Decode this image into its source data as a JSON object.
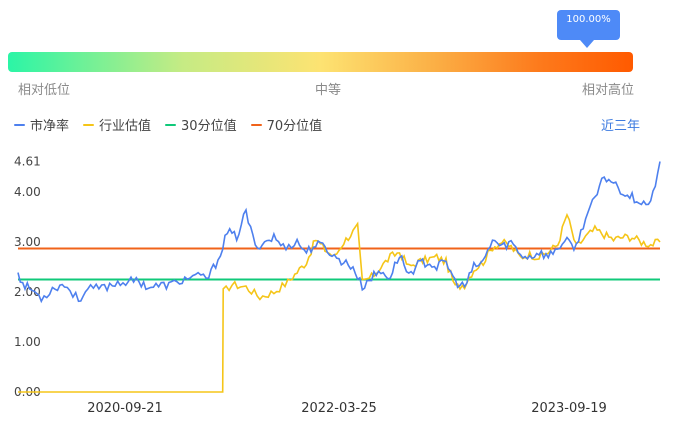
{
  "gauge": {
    "value_label": "100.00%",
    "low_label": "相对低位",
    "mid_label": "中等",
    "high_label": "相对高位"
  },
  "period_label": "近三年",
  "colors": {
    "pb": "#4e80ee",
    "industry": "#f5c518",
    "p30": "#10c97a",
    "p70": "#f0631a"
  },
  "chart_data": {
    "type": "line",
    "legend_position": "top-left",
    "grid": false,
    "ylim": [
      0,
      4.61
    ],
    "yticks": [
      "0.00",
      "1.00",
      "2.00",
      "3.00",
      "4.00",
      "4.61"
    ],
    "xticks": [
      "2020-09-21",
      "2022-03-25",
      "2023-09-19"
    ],
    "series": [
      {
        "name": "市净率",
        "anchors": [
          [
            0,
            2.42
          ],
          [
            0.01,
            2.15
          ],
          [
            0.03,
            2.05
          ],
          [
            0.05,
            1.88
          ],
          [
            0.08,
            2.1
          ],
          [
            0.1,
            2.15
          ],
          [
            0.13,
            1.85
          ],
          [
            0.15,
            2.05
          ],
          [
            0.18,
            2.08
          ],
          [
            0.22,
            2.2
          ],
          [
            0.26,
            2.22
          ],
          [
            0.28,
            2.1
          ],
          [
            0.33,
            2.15
          ],
          [
            0.37,
            2.3
          ],
          [
            0.41,
            2.3
          ],
          [
            0.43,
            2.65
          ],
          [
            0.45,
            3.2
          ],
          [
            0.47,
            3.1
          ],
          [
            0.49,
            3.6
          ],
          [
            0.51,
            2.9
          ],
          [
            0.53,
            3.0
          ],
          [
            0.55,
            3.1
          ],
          [
            0.57,
            2.9
          ],
          [
            0.6,
            3.0
          ],
          [
            0.62,
            2.8
          ],
          [
            0.64,
            2.95
          ],
          [
            0.66,
            2.9
          ],
          [
            0.68,
            2.7
          ],
          [
            0.7,
            2.6
          ],
          [
            0.72,
            2.5
          ],
          [
            0.74,
            2.1
          ],
          [
            0.76,
            2.3
          ],
          [
            0.78,
            2.4
          ],
          [
            0.8,
            2.3
          ],
          [
            0.82,
            2.75
          ],
          [
            0.84,
            2.35
          ],
          [
            0.86,
            2.55
          ],
          [
            0.88,
            2.6
          ],
          [
            0.9,
            2.5
          ],
          [
            0.92,
            2.6
          ],
          [
            0.94,
            2.2
          ],
          [
            0.96,
            2.1
          ],
          [
            0.98,
            2.5
          ],
          [
            1.0,
            2.6
          ],
          [
            1.02,
            3.05
          ],
          [
            1.04,
            2.9
          ],
          [
            1.06,
            3.0
          ],
          [
            1.08,
            2.75
          ],
          [
            1.1,
            2.7
          ],
          [
            1.12,
            2.8
          ],
          [
            1.14,
            2.7
          ],
          [
            1.16,
            2.9
          ],
          [
            1.18,
            3.0
          ],
          [
            1.2,
            2.9
          ],
          [
            1.22,
            3.5
          ],
          [
            1.24,
            3.85
          ],
          [
            1.26,
            4.3
          ],
          [
            1.28,
            4.2
          ],
          [
            1.3,
            4.0
          ],
          [
            1.32,
            3.9
          ],
          [
            1.34,
            3.8
          ],
          [
            1.36,
            3.75
          ],
          [
            1.38,
            4.61
          ]
        ]
      },
      {
        "name": "行业估值",
        "anchors": [
          [
            0,
            0.0
          ],
          [
            0.44,
            0.0
          ],
          [
            0.441,
            2.0
          ],
          [
            0.46,
            2.15
          ],
          [
            0.49,
            2.1
          ],
          [
            0.52,
            1.9
          ],
          [
            0.55,
            2.0
          ],
          [
            0.58,
            2.2
          ],
          [
            0.6,
            2.4
          ],
          [
            0.62,
            2.6
          ],
          [
            0.64,
            3.05
          ],
          [
            0.66,
            2.85
          ],
          [
            0.68,
            2.7
          ],
          [
            0.7,
            3.0
          ],
          [
            0.72,
            3.2
          ],
          [
            0.73,
            3.3
          ],
          [
            0.74,
            2.2
          ],
          [
            0.76,
            2.3
          ],
          [
            0.78,
            2.5
          ],
          [
            0.8,
            2.7
          ],
          [
            0.82,
            2.8
          ],
          [
            0.84,
            2.5
          ],
          [
            0.86,
            2.6
          ],
          [
            0.88,
            2.65
          ],
          [
            0.9,
            2.7
          ],
          [
            0.92,
            2.6
          ],
          [
            0.94,
            2.1
          ],
          [
            0.96,
            2.15
          ],
          [
            0.98,
            2.45
          ],
          [
            1.0,
            2.6
          ],
          [
            1.02,
            2.9
          ],
          [
            1.04,
            3.0
          ],
          [
            1.06,
            2.9
          ],
          [
            1.08,
            2.7
          ],
          [
            1.1,
            2.75
          ],
          [
            1.12,
            2.7
          ],
          [
            1.14,
            2.8
          ],
          [
            1.16,
            2.95
          ],
          [
            1.18,
            3.55
          ],
          [
            1.2,
            2.9
          ],
          [
            1.22,
            3.1
          ],
          [
            1.24,
            3.25
          ],
          [
            1.26,
            3.15
          ],
          [
            1.28,
            3.05
          ],
          [
            1.3,
            3.1
          ],
          [
            1.32,
            3.1
          ],
          [
            1.34,
            3.0
          ],
          [
            1.36,
            2.95
          ],
          [
            1.38,
            3.0
          ]
        ]
      },
      {
        "name": "30分位值",
        "value": 2.25
      },
      {
        "name": "70分位值",
        "value": 2.87
      }
    ]
  }
}
